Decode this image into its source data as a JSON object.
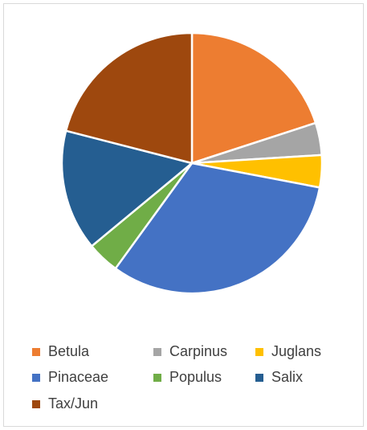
{
  "chart_data": {
    "type": "pie",
    "categories": [
      "Betula",
      "Carpinus",
      "Juglans",
      "Pinaceae",
      "Populus",
      "Salix",
      "Tax/Jun"
    ],
    "values": [
      20,
      4,
      4,
      32,
      4,
      15,
      21
    ],
    "colors": [
      "#ED7D31",
      "#A5A5A5",
      "#FFC000",
      "#4472C4",
      "#70AD47",
      "#255E91",
      "#9E480E"
    ],
    "legend_position": "bottom",
    "title": ""
  }
}
